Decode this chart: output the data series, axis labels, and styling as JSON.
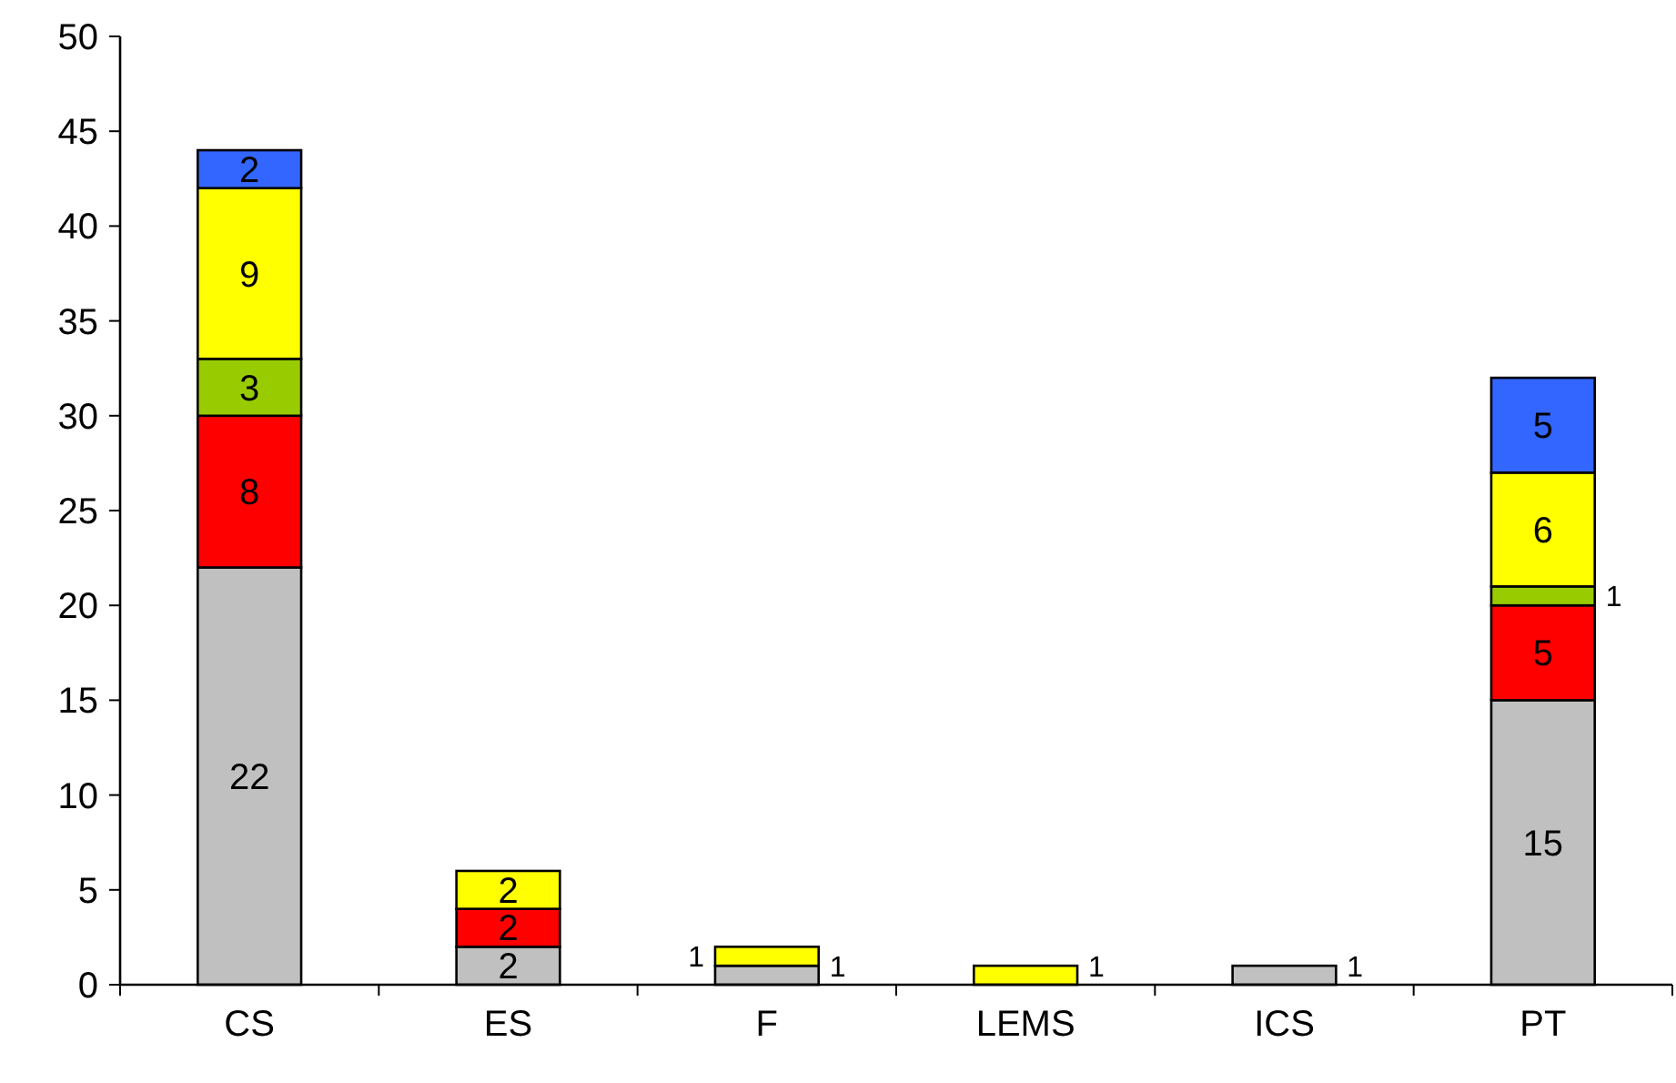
{
  "chart_data": {
    "type": "bar",
    "stacked": true,
    "data_labels": true,
    "grid": false,
    "categories": [
      "CS",
      "ES",
      "F",
      "LEMS",
      "ICS",
      "PT"
    ],
    "ylim": [
      0,
      50
    ],
    "yticks": [
      0,
      5,
      10,
      15,
      20,
      25,
      30,
      35,
      40,
      45,
      50
    ],
    "series": [
      {
        "color": "#c0c0c0",
        "values": [
          22,
          2,
          1,
          null,
          1,
          15
        ]
      },
      {
        "color": "#ff0000",
        "values": [
          8,
          2,
          null,
          null,
          null,
          5
        ]
      },
      {
        "color": "#99cc00",
        "values": [
          3,
          null,
          null,
          null,
          null,
          1
        ]
      },
      {
        "color": "#ffff00",
        "values": [
          9,
          2,
          1,
          1,
          null,
          6
        ]
      },
      {
        "color": "#3366ff",
        "values": [
          2,
          null,
          null,
          null,
          null,
          5
        ]
      }
    ]
  }
}
